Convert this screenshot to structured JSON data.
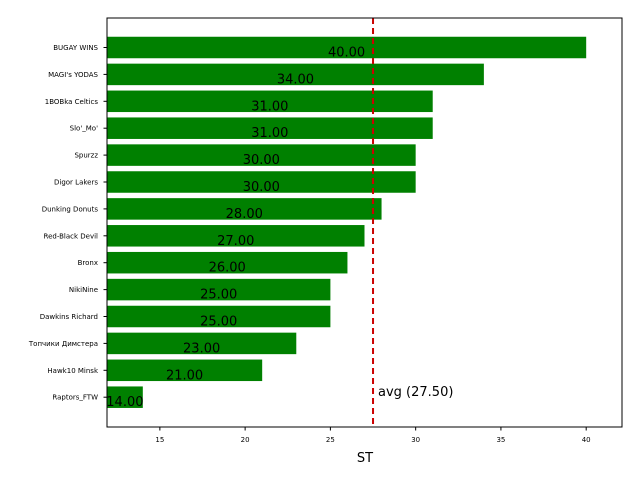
{
  "chart_data": {
    "type": "bar",
    "orientation": "horizontal",
    "categories": [
      "BUGAY WINS",
      "MAGI's YODAS",
      "1BOBka Celtics",
      "Slo'_Mo'",
      "Spurzz",
      "Digor Lakers",
      "Dunking Donuts",
      "Red-Black Devil",
      "Bronx",
      "NikiNine",
      "Dawkins Richard",
      "Топчики Димстера",
      "Hawk10 Minsk",
      "Raptors_FTW"
    ],
    "values": [
      40,
      34,
      31,
      31,
      30,
      30,
      28,
      27,
      26,
      25,
      25,
      23,
      21,
      14
    ],
    "value_labels": [
      "40.00",
      "34.00",
      "31.00",
      "31.00",
      "30.00",
      "30.00",
      "28.00",
      "27.00",
      "26.00",
      "25.00",
      "25.00",
      "23.00",
      "21.00",
      "14.00"
    ],
    "xlabel": "ST",
    "ylabel": "",
    "title": "",
    "xlim": [
      11.9,
      42.1
    ],
    "xticks": [
      15,
      20,
      25,
      30,
      35,
      40
    ],
    "xtick_labels": [
      "15",
      "20",
      "25",
      "30",
      "35",
      "40"
    ],
    "grid": false,
    "bar_color": "#008000",
    "average": {
      "value": 27.5,
      "label": "avg (27.50)",
      "color": "#cc0000",
      "style": "dashed"
    }
  }
}
